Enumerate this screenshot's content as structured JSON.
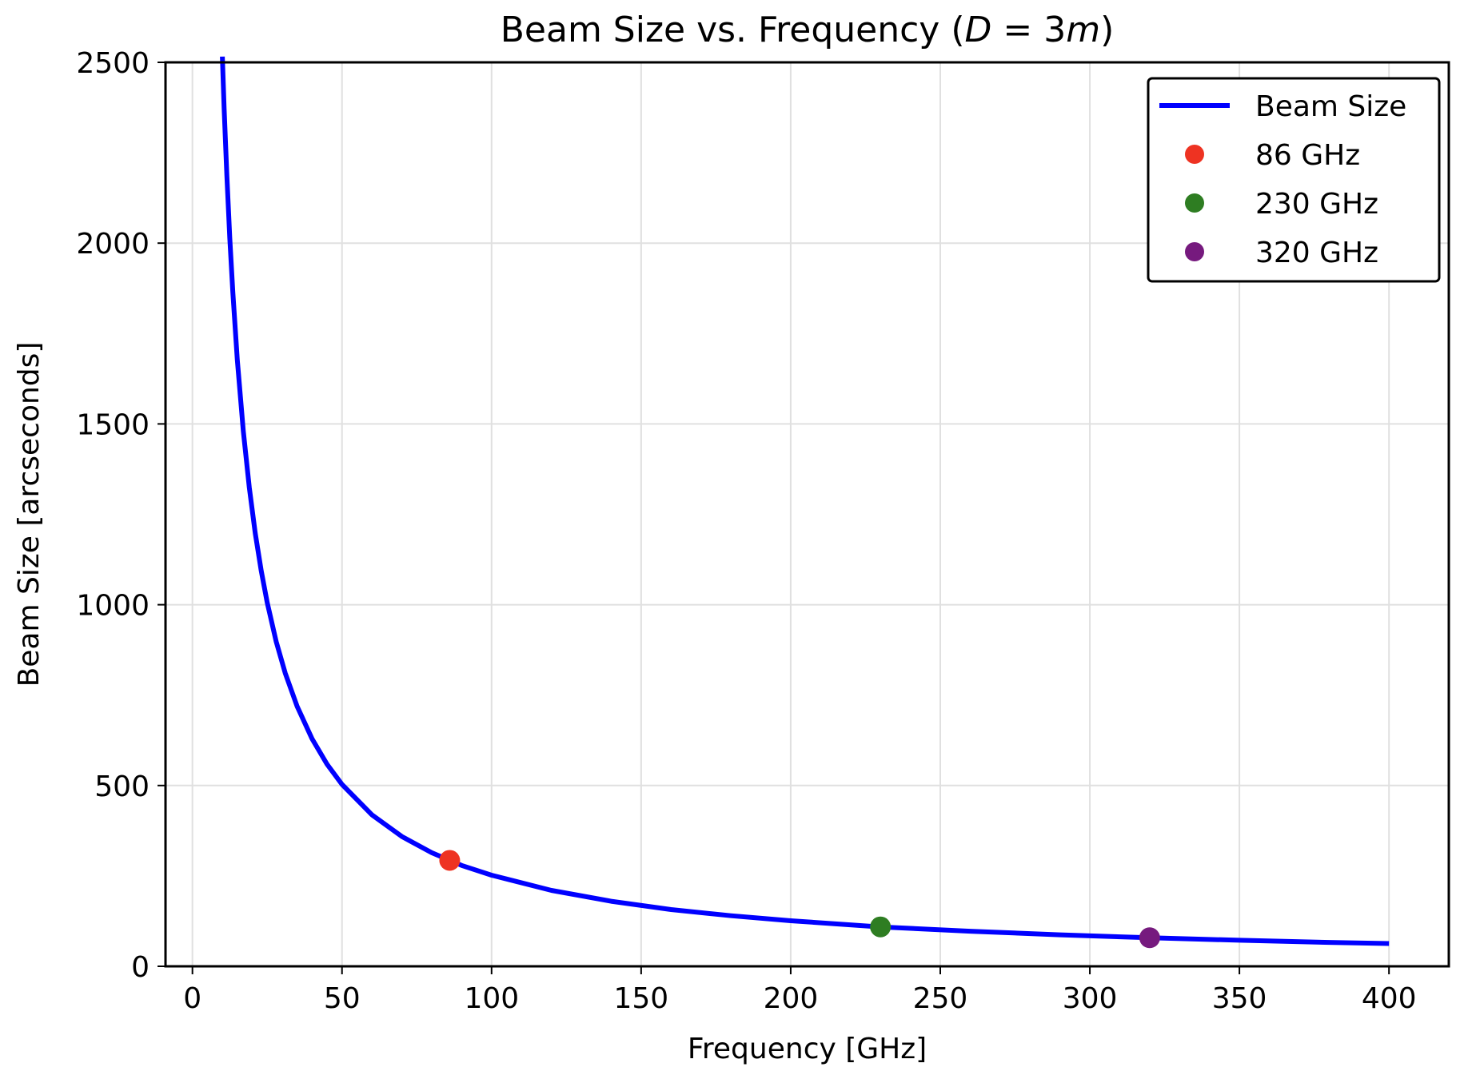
{
  "chart_data": {
    "type": "line",
    "title_main": "Beam Size vs. Frequency (",
    "title_math": "D",
    "title_eq": " = 3",
    "title_unit": "m",
    "title_close": ")",
    "xlabel": "Frequency [GHz]",
    "ylabel": "Beam Size [arcseconds]",
    "xlim": [
      -9,
      420
    ],
    "ylim": [
      0,
      2500
    ],
    "xticks": [
      0,
      50,
      100,
      150,
      200,
      250,
      300,
      350,
      400
    ],
    "yticks": [
      0,
      500,
      1000,
      1500,
      2000,
      2500
    ],
    "grid": true,
    "legend_position": "top-right",
    "series": [
      {
        "name": "Beam Size",
        "color": "#0000ff",
        "x": [
          10,
          10.6,
          11.5,
          12.5,
          13.5,
          15,
          17,
          19,
          21,
          23,
          25,
          28,
          31,
          35,
          40,
          45,
          50,
          60,
          70,
          80,
          86,
          90,
          100,
          120,
          140,
          160,
          180,
          200,
          230,
          260,
          290,
          320,
          350,
          380,
          400
        ],
        "y": [
          2516,
          2373,
          2188,
          2013,
          1864,
          1677,
          1480,
          1324,
          1198,
          1094,
          1006,
          898,
          811,
          719,
          629,
          559,
          503,
          419,
          359,
          314,
          293,
          279,
          252,
          210,
          180,
          157,
          140,
          126,
          109,
          97,
          87,
          79,
          72,
          66,
          63
        ]
      }
    ],
    "markers": [
      {
        "name": "86 GHz",
        "x": 86,
        "y": 293,
        "color": "#ee3322"
      },
      {
        "name": "230 GHz",
        "x": 230,
        "y": 109,
        "color": "#2e7d22"
      },
      {
        "name": "320 GHz",
        "x": 320,
        "y": 79,
        "color": "#761a7e"
      }
    ]
  }
}
